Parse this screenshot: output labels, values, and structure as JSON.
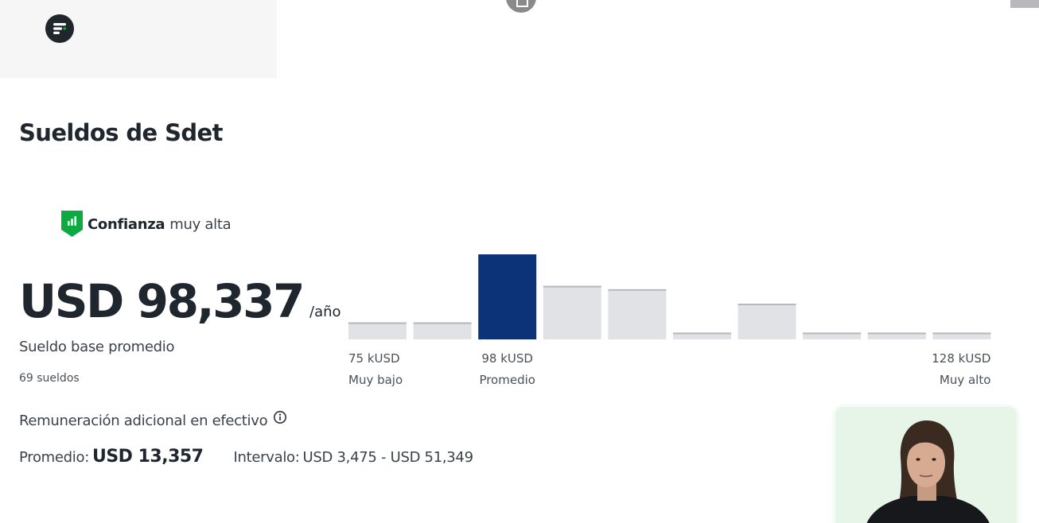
{
  "header": {
    "logo_icon": "brand-logo-icon",
    "top_center_icon": "overlay-icon"
  },
  "title": "Sueldos de Sdet",
  "confidence": {
    "icon": "shield-bar-chart-icon",
    "label": "Confianza",
    "level": "muy alta",
    "color": "#0CAA41"
  },
  "salary": {
    "amount": "USD 98,337",
    "unit": "/año",
    "base_label": "Sueldo base promedio",
    "count_label": "69 sueldos"
  },
  "chart_data": {
    "type": "bar",
    "series": [
      {
        "values": [
          0.2,
          0.2,
          1.0,
          0.63,
          0.59,
          0.08,
          0.42,
          0.08,
          0.08,
          0.08
        ]
      }
    ],
    "highlight_index": 2,
    "highlight_color": "#0C3278",
    "bar_color": "#E0E2E5",
    "axis_labels": [
      {
        "value": "75 kUSD",
        "caption": "Muy bajo",
        "bar_index": 0,
        "align": "start"
      },
      {
        "value": "98 kUSD",
        "caption": "Promedio",
        "bar_index": 2,
        "align": "middle"
      },
      {
        "value": "128 kUSD",
        "caption": "Muy alto",
        "bar_index": 9,
        "align": "end"
      }
    ]
  },
  "additional_cash": {
    "label": "Remuneración adicional en efectivo",
    "info_icon": "info-icon",
    "average_label": "Promedio:",
    "average_value": "USD 13,357",
    "range_label": "Intervalo:",
    "range_value": "USD 3,475 - USD 51,349"
  },
  "webcam": {
    "description_icon": "webcam-presenter"
  }
}
